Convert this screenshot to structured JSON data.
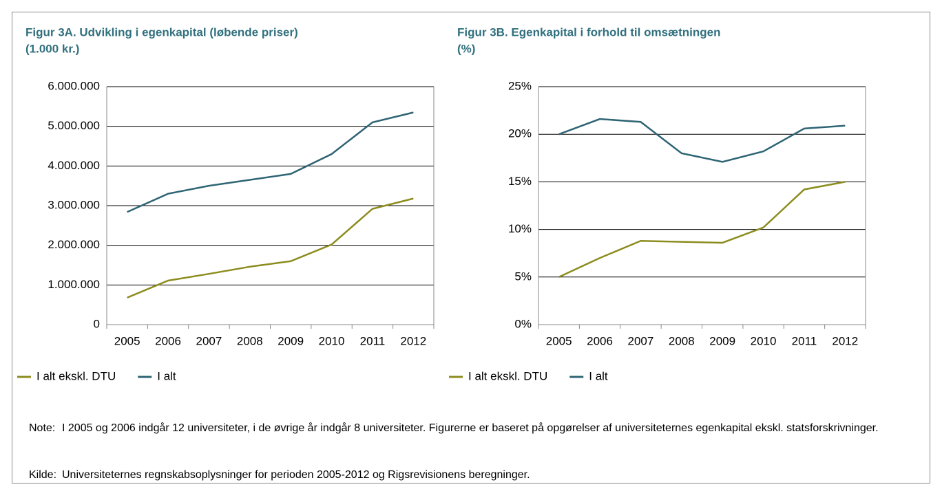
{
  "chart_data": [
    {
      "type": "line",
      "title": [
        "Figur 3A. Udvikling i egenkapital (løbende priser)",
        "(1.000 kr.)"
      ],
      "categories": [
        "2005",
        "2006",
        "2007",
        "2008",
        "2009",
        "2010",
        "2011",
        "2012"
      ],
      "series": [
        {
          "name": "I alt ekskl. DTU",
          "color": "#8c8c1e",
          "values": [
            680000,
            1110000,
            1280000,
            1460000,
            1600000,
            2020000,
            2920000,
            3180000
          ]
        },
        {
          "name": "I alt",
          "color": "#2e6474",
          "values": [
            2840000,
            3300000,
            3500000,
            3650000,
            3800000,
            4300000,
            5100000,
            5350000
          ]
        }
      ],
      "ylim": [
        0,
        6000000
      ],
      "yticks": [
        0,
        {
          "value": 1000000,
          "label": "1.000.000"
        },
        {
          "value": 2000000,
          "label": "2.000.000"
        },
        {
          "value": 3000000,
          "label": "3.000.000"
        },
        {
          "value": 4000000,
          "label": "4.000.000"
        },
        {
          "value": 5000000,
          "label": "5.000.000"
        },
        {
          "value": 6000000,
          "label": "6.000.000"
        }
      ],
      "grid": true,
      "legend": "bottom"
    },
    {
      "type": "line",
      "title": [
        "Figur 3B. Egenkapital i forhold til omsætningen",
        "(%)"
      ],
      "categories": [
        "2005",
        "2006",
        "2007",
        "2008",
        "2009",
        "2010",
        "2011",
        "2012"
      ],
      "series": [
        {
          "name": "I alt ekskl. DTU",
          "color": "#8c8c1e",
          "values": [
            5.0,
            7.0,
            8.8,
            8.7,
            8.6,
            10.2,
            14.2,
            15.0
          ]
        },
        {
          "name": "I alt",
          "color": "#2e6474",
          "values": [
            20.0,
            21.6,
            21.3,
            18.0,
            17.1,
            18.2,
            20.6,
            20.9
          ]
        }
      ],
      "ylim": [
        0,
        25
      ],
      "yticks": [
        {
          "value": 0,
          "label": "0%"
        },
        {
          "value": 5,
          "label": "5%"
        },
        {
          "value": 10,
          "label": "10%"
        },
        {
          "value": 15,
          "label": "15%"
        },
        {
          "value": 20,
          "label": "20%"
        },
        {
          "value": 25,
          "label": "25%"
        }
      ],
      "grid": true,
      "legend": "bottom"
    }
  ],
  "note": {
    "label": "Note:",
    "text": "I 2005 og 2006 indgår 12 universiteter, i de øvrige år indgår 8 universiteter. Figurerne er baseret på opgørelser af universiteternes egenkapital ekskl. statsforskrivninger."
  },
  "source": {
    "label": "Kilde:",
    "text": "Universiteternes regnskabsoplysninger for perioden 2005-2012 og Rigsrevisionens beregninger."
  }
}
